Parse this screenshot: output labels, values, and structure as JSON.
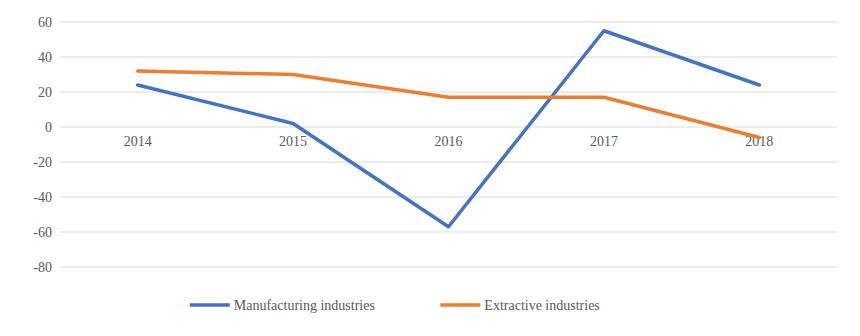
{
  "chart_data": {
    "type": "line",
    "categories": [
      "2014",
      "2015",
      "2016",
      "2017",
      "2018"
    ],
    "series": [
      {
        "name": "Manufacturing industries",
        "color": "#4472c4",
        "values": [
          24,
          2,
          -57,
          55,
          24
        ]
      },
      {
        "name": "Extractive industries",
        "color": "#ed7d31",
        "values": [
          32,
          30,
          17,
          17,
          -6
        ]
      }
    ],
    "ylim": [
      -80,
      60
    ],
    "yticks": [
      -80,
      -60,
      -40,
      -20,
      0,
      20,
      40,
      60
    ],
    "grid": true,
    "legend": "bottom"
  }
}
